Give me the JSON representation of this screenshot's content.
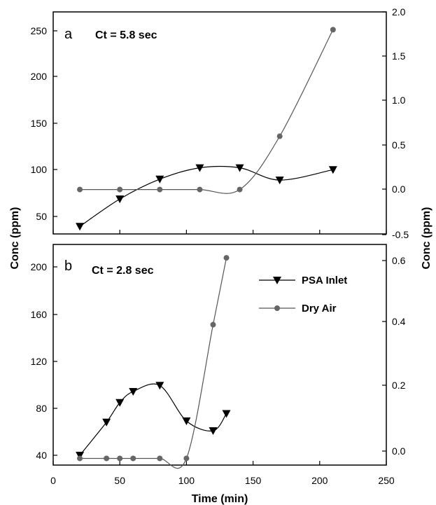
{
  "chart_data": [
    {
      "panel_label": "a",
      "type": "line",
      "annotation": "Ct = 5.8 sec",
      "xlabel": "Time (min)",
      "ylabel": "Conc (ppm)",
      "ylabel_right": "Conc (ppm)",
      "xlim": [
        0,
        250
      ],
      "ylim": [
        30,
        265
      ],
      "ylim_right": [
        -0.5,
        2.0
      ],
      "x_ticks": [
        0,
        50,
        100,
        150,
        200,
        250
      ],
      "y_ticks": [
        50,
        100,
        150,
        200,
        250
      ],
      "y_ticks_right": [
        "-0.5",
        "0.0",
        "0.5",
        "1.0",
        "1.5",
        "2.0"
      ],
      "grid": false,
      "series": [
        {
          "name": "PSA Inlet",
          "axis": "left",
          "marker": "triangle-down",
          "points": [
            [
              20,
              38
            ],
            [
              50,
              67
            ],
            [
              80,
              88
            ],
            [
              110,
              100
            ],
            [
              140,
              100
            ],
            [
              170,
              87
            ],
            [
              210,
              98
            ]
          ]
        },
        {
          "name": "Dry Air",
          "axis": "right",
          "marker": "circle",
          "points": [
            [
              20,
              0.0
            ],
            [
              50,
              0.0
            ],
            [
              80,
              0.0
            ],
            [
              110,
              0.0
            ],
            [
              140,
              0.0
            ],
            [
              170,
              0.6
            ],
            [
              210,
              1.8
            ]
          ]
        }
      ]
    },
    {
      "panel_label": "b",
      "type": "line",
      "annotation": "Ct = 2.8 sec",
      "xlabel": "Time (min)",
      "ylabel": "Conc (ppm)",
      "ylabel_right": "Conc (ppm)",
      "xlim": [
        0,
        250
      ],
      "ylim": [
        36,
        216
      ],
      "ylim_right": [
        -0.02,
        0.64
      ],
      "x_ticks": [
        0,
        50,
        100,
        150,
        200,
        250
      ],
      "y_ticks": [
        40,
        80,
        120,
        160,
        200
      ],
      "y_ticks_right": [
        "0.0",
        "0.2",
        "0.4",
        "0.6"
      ],
      "grid": false,
      "legend": {
        "position": "top-right",
        "entries": [
          {
            "label": "PSA Inlet",
            "marker": "triangle-down"
          },
          {
            "label": "Dry Air",
            "marker": "circle"
          }
        ]
      },
      "series": [
        {
          "name": "PSA Inlet",
          "axis": "left",
          "marker": "triangle-down",
          "points": [
            [
              20,
              44
            ],
            [
              40,
              71
            ],
            [
              50,
              87
            ],
            [
              60,
              96
            ],
            [
              80,
              101
            ],
            [
              100,
              72
            ],
            [
              120,
              64
            ],
            [
              130,
              78
            ]
          ]
        },
        {
          "name": "Dry Air",
          "axis": "right",
          "marker": "circle",
          "points": [
            [
              20,
              0.0
            ],
            [
              40,
              0.0
            ],
            [
              50,
              0.0
            ],
            [
              60,
              0.0
            ],
            [
              80,
              0.0
            ],
            [
              100,
              0.0
            ],
            [
              120,
              0.4
            ],
            [
              130,
              0.6
            ]
          ]
        }
      ]
    }
  ]
}
